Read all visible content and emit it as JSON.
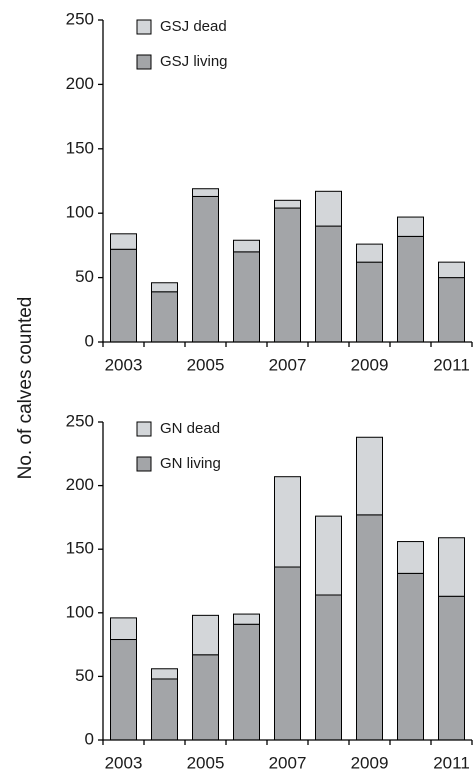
{
  "chart_data": [
    {
      "type": "stacked-bar",
      "ylabel": "No. of calves counted",
      "categories": [
        "2003",
        null,
        "2005",
        null,
        "2007",
        null,
        "2009",
        null,
        "2011"
      ],
      "series": [
        {
          "name": "GSJ dead",
          "color": "#d3d6d9",
          "values": [
            12,
            7,
            6,
            9,
            6,
            27,
            14,
            15,
            12
          ]
        },
        {
          "name": "GSJ living",
          "color": "#a3a5a8",
          "values": [
            72,
            39,
            113,
            70,
            104,
            90,
            62,
            82,
            50
          ]
        }
      ],
      "ylim": [
        0,
        250
      ],
      "yticks": [
        0,
        50,
        100,
        150,
        200,
        250
      ],
      "grid": false
    },
    {
      "type": "stacked-bar",
      "categories": [
        "2003",
        null,
        "2005",
        null,
        "2007",
        null,
        "2009",
        null,
        "2011"
      ],
      "series": [
        {
          "name": "GN dead",
          "color": "#d3d6d9",
          "values": [
            17,
            8,
            31,
            8,
            71,
            62,
            61,
            25,
            46
          ]
        },
        {
          "name": "GN living",
          "color": "#a3a5a8",
          "values": [
            79,
            48,
            67,
            91,
            136,
            114,
            177,
            131,
            113
          ]
        }
      ],
      "ylim": [
        0,
        250
      ],
      "yticks": [
        0,
        50,
        100,
        150,
        200,
        250
      ],
      "grid": false
    }
  ]
}
